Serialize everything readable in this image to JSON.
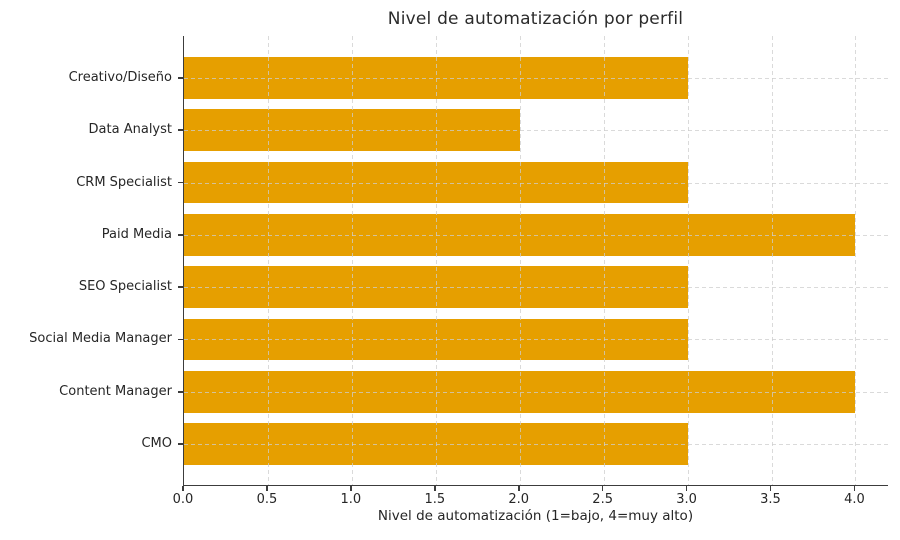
{
  "chart_data": {
    "type": "bar",
    "orientation": "horizontal",
    "title": "Nivel de automatización por perfil",
    "xlabel": "Nivel de automatización (1=bajo, 4=muy alto)",
    "ylabel": "",
    "categories": [
      "Creativo/Diseño",
      "Data Analyst",
      "CRM Specialist",
      "Paid Media",
      "SEO Specialist",
      "Social Media Manager",
      "Content Manager",
      "CMO"
    ],
    "values": [
      3,
      2,
      3,
      4,
      3,
      3,
      4,
      3
    ],
    "xlim": [
      0,
      4.2
    ],
    "xticks": [
      0.0,
      0.5,
      1.0,
      1.5,
      2.0,
      2.5,
      3.0,
      3.5,
      4.0
    ],
    "xtick_labels": [
      "0.0",
      "0.5",
      "1.0",
      "1.5",
      "2.0",
      "2.5",
      "3.0",
      "3.5",
      "4.0"
    ],
    "grid": true,
    "grid_style": "dashed",
    "legend": null,
    "bar_color": "#E69F00",
    "axis_color": "#3c3c3c",
    "grid_color": "#cdcdcd",
    "text_color": "#262626",
    "background": "#ffffff"
  }
}
